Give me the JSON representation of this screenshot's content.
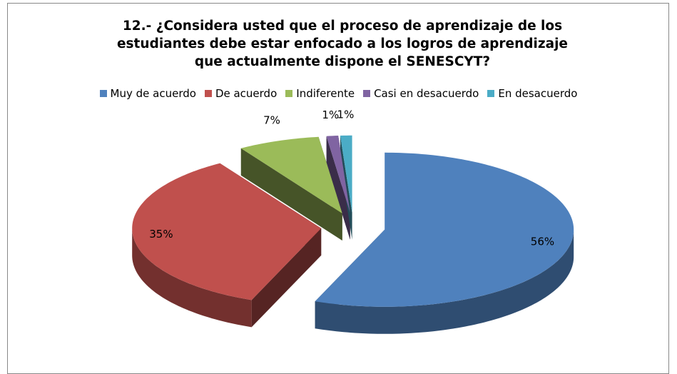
{
  "chart_data": {
    "type": "pie3d",
    "title": "12.- ¿Considera usted que el proceso de aprendizaje de los estudiantes debe estar enfocado a los logros de aprendizaje que actualmente dispone el SENESCYT?",
    "categories": [
      "Muy de acuerdo",
      "De acuerdo",
      "Indiferente",
      "Casi en  desacuerdo",
      "En desacuerdo"
    ],
    "values": [
      56,
      35,
      7,
      1,
      1
    ],
    "value_labels": [
      "56%",
      "35%",
      "7%",
      "1%",
      "1%"
    ],
    "colors": [
      "#4f81bd",
      "#c0504d",
      "#9bbb59",
      "#8064a2",
      "#4bacc6"
    ],
    "legend": "top"
  }
}
